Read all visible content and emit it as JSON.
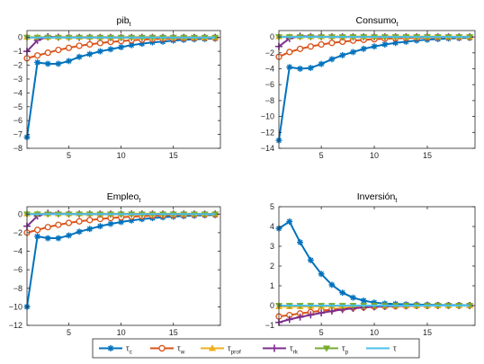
{
  "chart_data": [
    {
      "type": "line",
      "title_main": "pib",
      "title_sub": "t",
      "x": [
        1,
        2,
        3,
        4,
        5,
        6,
        7,
        8,
        9,
        10,
        11,
        12,
        13,
        14,
        15,
        16,
        17,
        18,
        19
      ],
      "xticks": [
        5,
        10,
        15
      ],
      "xlim": [
        1,
        19.5
      ],
      "ylim": [
        -8,
        0.5
      ],
      "yticks": [
        0,
        -1,
        -2,
        -3,
        -4,
        -5,
        -6,
        -7,
        -8
      ],
      "series": [
        {
          "values": [
            -7.2,
            -1.8,
            -1.9,
            -1.9,
            -1.7,
            -1.4,
            -1.2,
            -1.0,
            -0.85,
            -0.7,
            -0.55,
            -0.45,
            -0.35,
            -0.3,
            -0.22,
            -0.17,
            -0.13,
            -0.1,
            -0.08
          ]
        },
        {
          "values": [
            -1.5,
            -1.3,
            -1.1,
            -0.9,
            -0.75,
            -0.6,
            -0.5,
            -0.4,
            -0.32,
            -0.26,
            -0.2,
            -0.16,
            -0.12,
            -0.1,
            -0.08,
            -0.06,
            -0.05,
            -0.04,
            -0.03
          ]
        },
        {
          "values": [
            0.03,
            0.03,
            0.03,
            0.03,
            0.03,
            0.03,
            0.03,
            0.03,
            0.03,
            0.03,
            0.03,
            0.03,
            0.03,
            0.03,
            0.03,
            0.03,
            0.03,
            0.03,
            0.03
          ]
        },
        {
          "values": [
            -1.0,
            -0.2,
            0.05,
            0.02,
            0.01,
            0,
            0,
            0,
            0,
            0,
            0,
            0,
            0,
            0,
            0,
            0,
            0,
            0,
            0
          ]
        },
        {
          "values": [
            0,
            0,
            0,
            0,
            0,
            0,
            0,
            0,
            0,
            0,
            0,
            0,
            0,
            0,
            0,
            0,
            0,
            0,
            0
          ]
        },
        {
          "values": [
            0,
            0,
            0,
            0,
            0,
            0,
            0,
            0,
            0,
            0,
            0,
            0,
            0,
            0,
            0,
            0,
            0,
            0,
            0
          ]
        }
      ]
    },
    {
      "type": "line",
      "title_main": "Consumo",
      "title_sub": "t",
      "x": [
        1,
        2,
        3,
        4,
        5,
        6,
        7,
        8,
        9,
        10,
        11,
        12,
        13,
        14,
        15,
        16,
        17,
        18,
        19
      ],
      "xticks": [
        5,
        10,
        15
      ],
      "xlim": [
        1,
        19.5
      ],
      "ylim": [
        -14,
        0.8
      ],
      "yticks": [
        0,
        -2,
        -4,
        -6,
        -8,
        -10,
        -12,
        -14
      ],
      "series": [
        {
          "values": [
            -13.0,
            -3.8,
            -4.0,
            -3.9,
            -3.4,
            -2.8,
            -2.3,
            -1.9,
            -1.5,
            -1.2,
            -0.95,
            -0.75,
            -0.6,
            -0.45,
            -0.35,
            -0.27,
            -0.2,
            -0.15,
            -0.12
          ]
        },
        {
          "values": [
            -2.5,
            -1.9,
            -1.5,
            -1.2,
            -0.95,
            -0.75,
            -0.6,
            -0.47,
            -0.37,
            -0.29,
            -0.23,
            -0.18,
            -0.14,
            -0.11,
            -0.08,
            -0.06,
            -0.05,
            -0.04,
            -0.03
          ]
        },
        {
          "values": [
            0.05,
            0.05,
            0.05,
            0.05,
            0.05,
            0.05,
            0.05,
            0.05,
            0.05,
            0.05,
            0.05,
            0.05,
            0.05,
            0.05,
            0.05,
            0.05,
            0.05,
            0.05,
            0.05
          ]
        },
        {
          "values": [
            -1.2,
            -0.2,
            0.1,
            0.05,
            0.02,
            0,
            0,
            0,
            0,
            0,
            0,
            0,
            0,
            0,
            0,
            0,
            0,
            0,
            0
          ]
        },
        {
          "values": [
            0,
            0,
            0,
            0,
            0,
            0,
            0,
            0,
            0,
            0,
            0,
            0,
            0,
            0,
            0,
            0,
            0,
            0,
            0
          ]
        },
        {
          "values": [
            0,
            0,
            0,
            0,
            0,
            0,
            0,
            0,
            0,
            0,
            0,
            0,
            0,
            0,
            0,
            0,
            0,
            0,
            0
          ]
        }
      ]
    },
    {
      "type": "line",
      "title_main": "Empleo",
      "title_sub": "t",
      "x": [
        1,
        2,
        3,
        4,
        5,
        6,
        7,
        8,
        9,
        10,
        11,
        12,
        13,
        14,
        15,
        16,
        17,
        18,
        19
      ],
      "xticks": [
        5,
        10,
        15
      ],
      "xlim": [
        1,
        19.5
      ],
      "ylim": [
        -12,
        0.8
      ],
      "yticks": [
        0,
        -2,
        -4,
        -6,
        -8,
        -10,
        -12
      ],
      "series": [
        {
          "values": [
            -10.0,
            -2.4,
            -2.6,
            -2.6,
            -2.3,
            -1.9,
            -1.6,
            -1.3,
            -1.05,
            -0.85,
            -0.68,
            -0.54,
            -0.43,
            -0.34,
            -0.27,
            -0.21,
            -0.16,
            -0.12,
            -0.1
          ]
        },
        {
          "values": [
            -2.0,
            -1.7,
            -1.4,
            -1.15,
            -0.95,
            -0.78,
            -0.64,
            -0.52,
            -0.42,
            -0.34,
            -0.27,
            -0.22,
            -0.17,
            -0.14,
            -0.11,
            -0.08,
            -0.06,
            -0.05,
            -0.04
          ]
        },
        {
          "values": [
            0.05,
            0.05,
            0.05,
            0.05,
            0.05,
            0.05,
            0.05,
            0.05,
            0.05,
            0.05,
            0.05,
            0.05,
            0.05,
            0.05,
            0.05,
            0.05,
            0.05,
            0.05,
            0.05
          ]
        },
        {
          "values": [
            -1.3,
            -0.2,
            0.1,
            0.05,
            0.02,
            0,
            0,
            0,
            0,
            0,
            0,
            0,
            0,
            0,
            0,
            0,
            0,
            0,
            0
          ]
        },
        {
          "values": [
            0,
            0,
            0,
            0,
            0,
            0,
            0,
            0,
            0,
            0,
            0,
            0,
            0,
            0,
            0,
            0,
            0,
            0,
            0
          ]
        },
        {
          "values": [
            0,
            0,
            0,
            0,
            0,
            0,
            0,
            0,
            0,
            0,
            0,
            0,
            0,
            0,
            0,
            0,
            0,
            0,
            0
          ]
        }
      ]
    },
    {
      "type": "line",
      "title_main": "Inversión",
      "title_sub": "t",
      "x": [
        1,
        2,
        3,
        4,
        5,
        6,
        7,
        8,
        9,
        10,
        11,
        12,
        13,
        14,
        15,
        16,
        17,
        18,
        19
      ],
      "xticks": [
        5,
        10,
        15
      ],
      "xlim": [
        1,
        19.5
      ],
      "ylim": [
        -1,
        5
      ],
      "yticks": [
        5,
        4,
        3,
        2,
        1,
        0,
        -1
      ],
      "series": [
        {
          "values": [
            3.9,
            4.25,
            3.2,
            2.3,
            1.6,
            1.05,
            0.65,
            0.4,
            0.25,
            0.15,
            0.1,
            0.08,
            0.06,
            0.05,
            0.04,
            0.03,
            0.02,
            0.02,
            0.01
          ]
        },
        {
          "values": [
            -0.55,
            -0.48,
            -0.4,
            -0.33,
            -0.26,
            -0.2,
            -0.15,
            -0.11,
            -0.08,
            -0.06,
            -0.04,
            -0.03,
            -0.02,
            -0.01,
            -0.01,
            0,
            0,
            0,
            0
          ]
        },
        {
          "values": [
            -0.05,
            -0.05,
            -0.05,
            -0.04,
            -0.04,
            -0.03,
            -0.03,
            -0.02,
            -0.02,
            -0.01,
            -0.01,
            -0.01,
            0,
            0,
            0,
            0,
            0,
            0,
            0
          ]
        },
        {
          "values": [
            -0.85,
            -0.7,
            -0.58,
            -0.47,
            -0.37,
            -0.28,
            -0.2,
            -0.14,
            -0.09,
            -0.06,
            -0.04,
            -0.02,
            -0.01,
            0,
            0,
            0,
            0,
            0,
            0
          ]
        },
        {
          "values": [
            0,
            0,
            0,
            0,
            0,
            0,
            0,
            0,
            0,
            0,
            0,
            0,
            0,
            0,
            0,
            0,
            0,
            0,
            0
          ]
        },
        {
          "values": [
            0,
            0,
            0,
            0,
            0,
            0,
            0,
            0,
            0,
            0,
            0,
            0,
            0,
            0,
            0,
            0,
            0,
            0,
            0
          ]
        }
      ]
    }
  ],
  "legend": {
    "placement": "bottom",
    "entries": [
      {
        "main": "τ",
        "sub": "c",
        "color": "#0072BD",
        "marker": "asterisk"
      },
      {
        "main": "τ",
        "sub": "w",
        "color": "#D95319",
        "marker": "circle"
      },
      {
        "main": "τ",
        "sub": "prof",
        "color": "#EDB120",
        "marker": "triangle-up"
      },
      {
        "main": "τ",
        "sub": "rk",
        "color": "#7E2F8E",
        "marker": "plus"
      },
      {
        "main": "τ",
        "sub": "p",
        "color": "#77AC30",
        "marker": "triangle-down"
      },
      {
        "main": "τ",
        "sub": "",
        "color": "#4DBEEE",
        "marker": "none"
      }
    ]
  },
  "style": {
    "axis_color": "#262626",
    "grid": false,
    "box": true
  }
}
